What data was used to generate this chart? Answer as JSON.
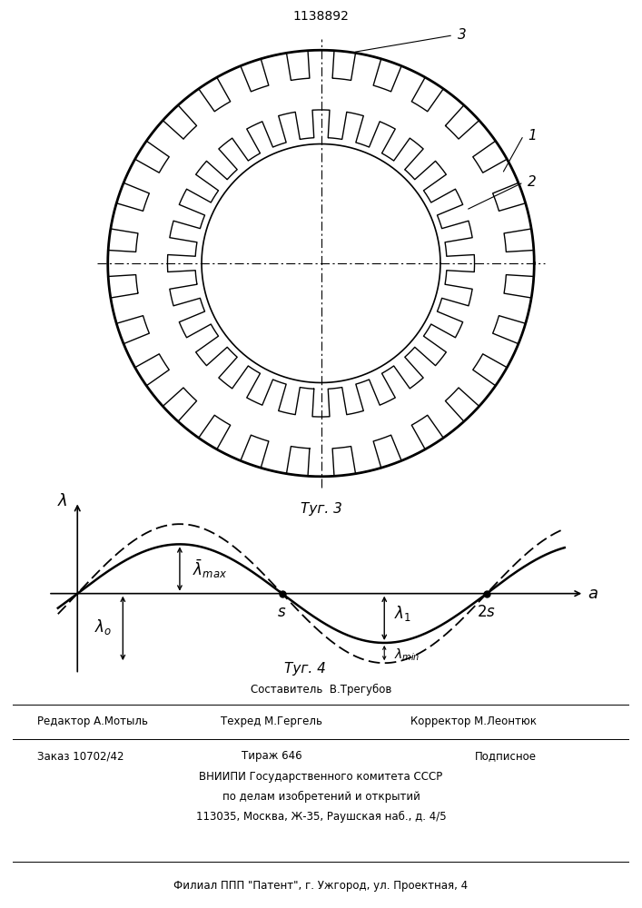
{
  "patent_number": "1138892",
  "fig3_label": "Τуг. 3",
  "fig4_label": "Τуг. 4",
  "label_1": "1",
  "label_2": "2",
  "label_3": "3",
  "n_teeth_outer": 28,
  "n_teeth_inner": 28,
  "background_color": "#ffffff",
  "line_color": "#000000"
}
